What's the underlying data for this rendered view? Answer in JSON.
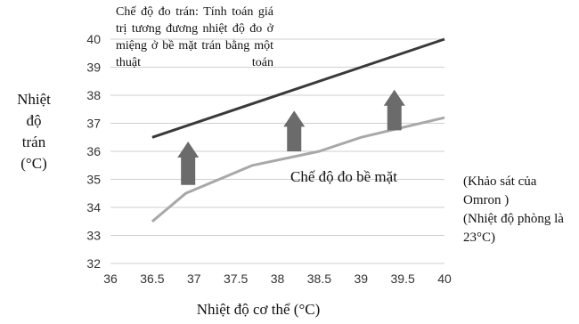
{
  "chart_data": {
    "type": "line",
    "x": [
      36,
      36.5,
      37,
      37.5,
      38,
      38.5,
      39,
      39.5,
      40
    ],
    "xlim": [
      36,
      40
    ],
    "ylim": [
      32,
      40
    ],
    "x_ticks": [
      "36",
      "36.5",
      "37",
      "37.5",
      "38",
      "38.5",
      "39",
      "39.5",
      "40"
    ],
    "y_ticks": [
      "32",
      "33",
      "34",
      "35",
      "36",
      "37",
      "38",
      "39",
      "40"
    ],
    "xlabel": "Nhiệt độ cơ thể (°C)",
    "ylabel_lines": [
      "Nhiệt",
      "độ",
      "trán",
      "(°C)"
    ],
    "grid": "horizontal",
    "series": [
      {
        "color": "#3a3a3a",
        "points": [
          [
            36.5,
            36.5
          ],
          [
            40,
            40
          ]
        ]
      },
      {
        "color": "#a8a8a8",
        "points": [
          [
            36.5,
            33.5
          ],
          [
            36.9,
            34.5
          ],
          [
            37.3,
            35.0
          ],
          [
            37.7,
            35.5
          ],
          [
            38.5,
            36.0
          ],
          [
            39.0,
            36.5
          ],
          [
            39.5,
            36.85
          ],
          [
            40,
            37.2
          ]
        ]
      }
    ],
    "arrows": [
      {
        "x": 36.93,
        "y_from": 34.8,
        "y_to": 36.35
      },
      {
        "x": 38.2,
        "y_from": 36.0,
        "y_to": 37.45
      },
      {
        "x": 39.4,
        "y_from": 36.75,
        "y_to": 38.2
      }
    ],
    "annotations": {
      "forehead_mode": "Chế độ đo trán: Tính toán giá trị tương đương nhiệt độ đo ở miệng ở bề mặt trán bằng một thuật toán",
      "surface_mode": "Chế độ đo bề mặt",
      "survey_note": "(Khảo sát của Omron )",
      "room_note": "(Nhiệt độ phòng là 23°C)"
    }
  }
}
